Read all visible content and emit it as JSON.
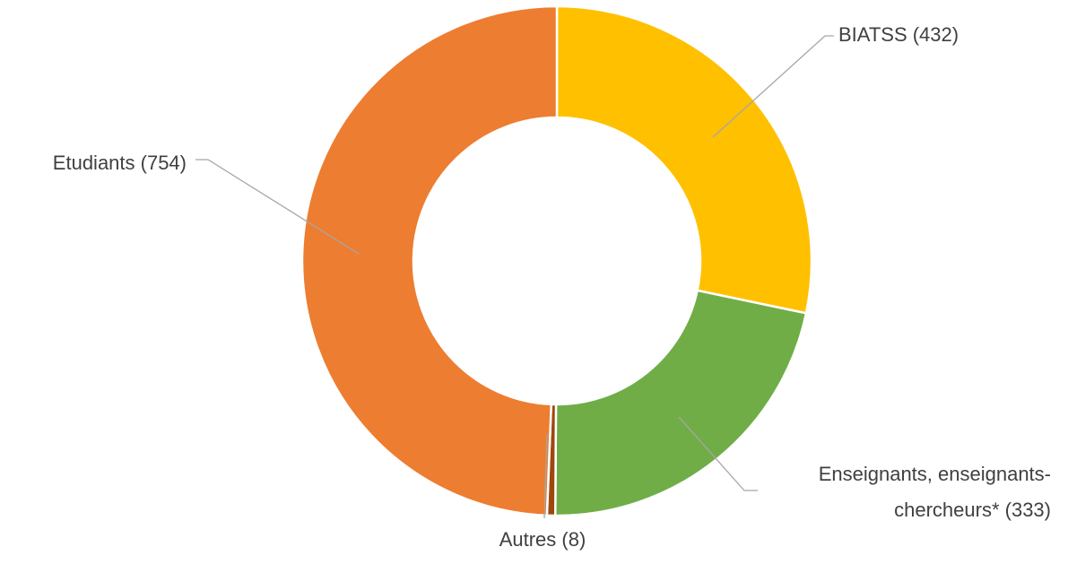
{
  "chart_data": {
    "type": "donut",
    "values": [
      432,
      333,
      8,
      754
    ],
    "value_labels": [
      [
        "BIATSS (432)"
      ],
      [
        "Enseignants, enseignants-",
        "chercheurs* (333)"
      ],
      [
        "Autres (8)"
      ],
      [
        "Etudiants (754)"
      ]
    ],
    "colors": [
      "#FFC000",
      "#70AD47",
      "#9E480E",
      "#ED7D31"
    ]
  }
}
